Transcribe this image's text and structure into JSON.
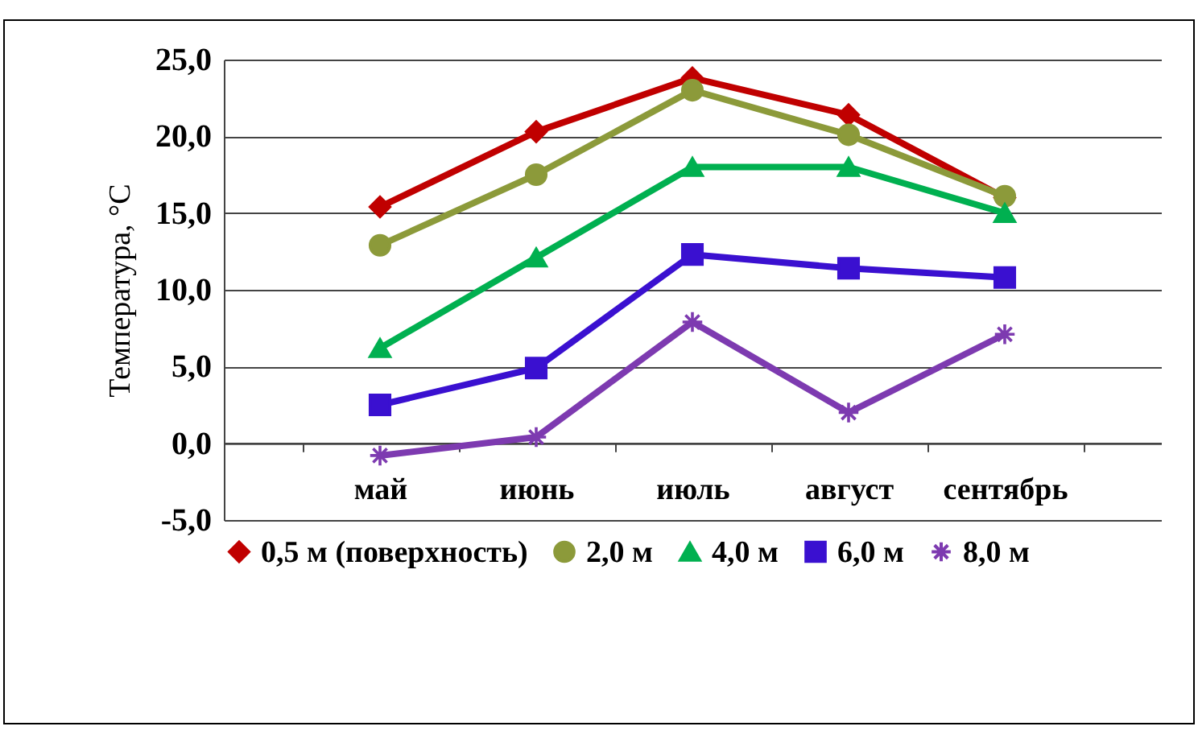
{
  "chart_data": {
    "type": "line",
    "ylabel": "Температура, °C",
    "categories": [
      "май",
      "июнь",
      "июль",
      "август",
      "сентябрь"
    ],
    "series": [
      {
        "name": "0,5 м (поверхность)",
        "color": "#c00000",
        "marker": "diamond",
        "values": [
          15.4,
          20.3,
          23.8,
          21.4,
          16.0
        ]
      },
      {
        "name": "2,0 м",
        "color": "#8c9a3a",
        "marker": "circle",
        "values": [
          12.9,
          17.5,
          23.0,
          20.1,
          16.1
        ]
      },
      {
        "name": "4,0 м",
        "color": "#00b050",
        "marker": "triangle",
        "values": [
          6.2,
          12.1,
          18.0,
          18.0,
          15.0
        ]
      },
      {
        "name": "6,0 м",
        "color": "#3a10d0",
        "marker": "square",
        "values": [
          2.5,
          4.9,
          12.3,
          11.4,
          10.8
        ]
      },
      {
        "name": "8,0 м",
        "color": "#7d3ab0",
        "marker": "cross",
        "values": [
          -0.8,
          0.4,
          7.9,
          2.0,
          7.1
        ]
      }
    ],
    "ylim": [
      -5,
      25
    ],
    "yticks": [
      {
        "value": -5,
        "label": "-5,0"
      },
      {
        "value": 0,
        "label": "0,0"
      },
      {
        "value": 5,
        "label": "5,0"
      },
      {
        "value": 10,
        "label": "10,0"
      },
      {
        "value": 15,
        "label": "15,0"
      },
      {
        "value": 20,
        "label": "20,0"
      },
      {
        "value": 25,
        "label": "25,0"
      }
    ],
    "grid": "y",
    "legend": "bottom",
    "line_style": "solid"
  }
}
